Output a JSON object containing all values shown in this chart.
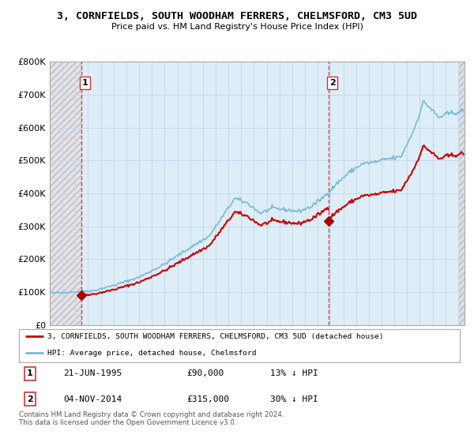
{
  "title": "3, CORNFIELDS, SOUTH WOODHAM FERRERS, CHELMSFORD, CM3 5UD",
  "subtitle": "Price paid vs. HM Land Registry's House Price Index (HPI)",
  "ylim": [
    0,
    800000
  ],
  "yticks": [
    0,
    100000,
    200000,
    300000,
    400000,
    500000,
    600000,
    700000,
    800000
  ],
  "ytick_labels": [
    "£0",
    "£100K",
    "£200K",
    "£300K",
    "£400K",
    "£500K",
    "£600K",
    "£700K",
    "£800K"
  ],
  "xlim_start": 1993.0,
  "xlim_end": 2025.5,
  "xticks": [
    1993,
    1994,
    1995,
    1996,
    1997,
    1998,
    1999,
    2000,
    2001,
    2002,
    2003,
    2004,
    2005,
    2006,
    2007,
    2008,
    2009,
    2010,
    2011,
    2012,
    2013,
    2014,
    2015,
    2016,
    2017,
    2018,
    2019,
    2020,
    2021,
    2022,
    2023,
    2024,
    2025
  ],
  "hpi_color": "#7ab8d9",
  "price_color": "#cc0000",
  "vline_color": "#cc3333",
  "marker_color": "#aa0000",
  "grid_color": "#c8d8e8",
  "hatch_color": "#c0c0c8",
  "bg_blue": "#ddeef8",
  "bg_hatch_left": "#e0e0e8",
  "sale1_x": 1995.47,
  "sale1_y": 90000,
  "sale2_x": 2014.84,
  "sale2_y": 315000,
  "legend_line1": "3, CORNFIELDS, SOUTH WOODHAM FERRERS, CHELMSFORD, CM3 5UD (detached house)",
  "legend_line2": "HPI: Average price, detached house, Chelmsford",
  "annotation1_label": "1",
  "annotation1_date": "21-JUN-1995",
  "annotation1_price": "£90,000",
  "annotation1_hpi": "13% ↓ HPI",
  "annotation2_label": "2",
  "annotation2_date": "04-NOV-2014",
  "annotation2_price": "£315,000",
  "annotation2_hpi": "30% ↓ HPI",
  "footer": "Contains HM Land Registry data © Crown copyright and database right 2024.\nThis data is licensed under the Open Government Licence v3.0."
}
